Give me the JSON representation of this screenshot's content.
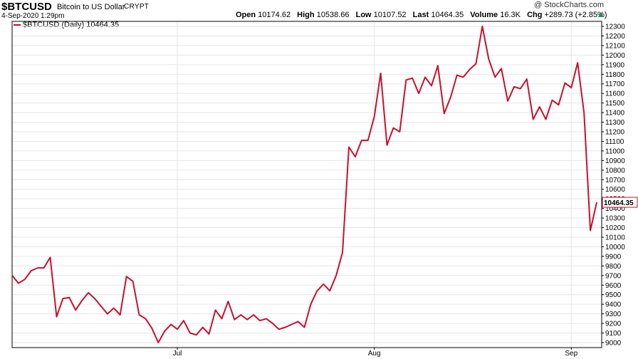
{
  "header": {
    "symbol": "$BTCUSD",
    "description": "Bitcoin to US Dollar",
    "exchange": "CRYPT",
    "watermark": "@ StockCharts.com",
    "date": "4-Sep-2020 1:29pm",
    "stats": [
      {
        "label": "Open",
        "value": "10174.62"
      },
      {
        "label": "High",
        "value": "10538.66"
      },
      {
        "label": "Low",
        "value": "10107.52"
      },
      {
        "label": "Last",
        "value": "10464.35"
      },
      {
        "label": "Volume",
        "value": "16.3K"
      },
      {
        "label": "Chg",
        "value": "+289.73 (+2.85%)"
      }
    ],
    "change_direction_icon": "up-arrow-icon"
  },
  "legend": {
    "label": "$BTCUSD (Daily) 10464.35"
  },
  "colors": {
    "line": "#c8102e",
    "grid": "#e6e6e6",
    "last_box_border": "#c8102e",
    "up_arrow": "#2e8b57"
  },
  "chart_data": {
    "type": "line",
    "title": "$BTCUSD Bitcoin to US Dollar",
    "ylim": [
      9000,
      12350
    ],
    "y_axis_side": "right",
    "y_ticks": [
      9000,
      9100,
      9200,
      9300,
      9400,
      9500,
      9600,
      9700,
      9800,
      9900,
      10000,
      10100,
      10200,
      10300,
      10400,
      10500,
      10600,
      10700,
      10800,
      10900,
      11000,
      11100,
      11200,
      11300,
      11400,
      11500,
      11600,
      11700,
      11800,
      11900,
      12000,
      12100,
      12200,
      12300
    ],
    "y_tick_labels": [
      "9000",
      "9100",
      "9200",
      "9300",
      "9400",
      "9500",
      "9600",
      "9700",
      "9800",
      "9900",
      "10000",
      "10100",
      "10200",
      "10300",
      "10400",
      "10500",
      "10600",
      "10700",
      "10800",
      "10900",
      "11000",
      "11100",
      "11200",
      "11300",
      "11400",
      "11500",
      "11600",
      "11700",
      "11800",
      "11900",
      "12000",
      "12100",
      "12200",
      "12300"
    ],
    "x_tick_labels": [
      {
        "label": "Jul",
        "index": 26
      },
      {
        "label": "Aug",
        "index": 57
      },
      {
        "label": "Sep",
        "index": 88
      }
    ],
    "last_value_label": "10464.35",
    "grid": true,
    "series": [
      {
        "name": "$BTCUSD (Daily)",
        "values": [
          9700,
          9620,
          9660,
          9750,
          9780,
          9780,
          9890,
          9270,
          9460,
          9470,
          9340,
          9440,
          9520,
          9460,
          9380,
          9300,
          9360,
          9290,
          9690,
          9640,
          9290,
          9250,
          9150,
          9000,
          9120,
          9190,
          9140,
          9230,
          9100,
          9080,
          9160,
          9090,
          9340,
          9250,
          9430,
          9240,
          9290,
          9240,
          9290,
          9230,
          9250,
          9200,
          9140,
          9160,
          9190,
          9220,
          9160,
          9400,
          9540,
          9610,
          9540,
          9700,
          9940,
          11040,
          10940,
          11110,
          11110,
          11360,
          11810,
          11060,
          11240,
          11200,
          11740,
          11760,
          11600,
          11770,
          11680,
          11890,
          11390,
          11560,
          11790,
          11770,
          11850,
          11910,
          12300,
          11960,
          11770,
          11860,
          11520,
          11670,
          11650,
          11750,
          11330,
          11460,
          11330,
          11530,
          11480,
          11710,
          11660,
          11920,
          11400,
          10170,
          10464
        ]
      }
    ]
  }
}
